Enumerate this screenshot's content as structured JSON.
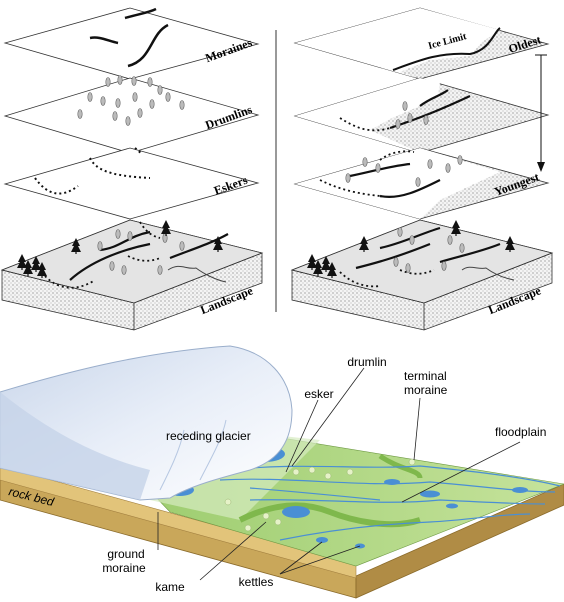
{
  "top_left": {
    "layers": [
      "Moraines",
      "Drumlins",
      "Eskers"
    ],
    "base": "Landscape"
  },
  "top_right": {
    "ice_limit": "Ice Limit",
    "oldest": "Oldest",
    "youngest": "Youngest",
    "base": "Landscape"
  },
  "bottom": {
    "labels": {
      "drumlin": "drumlin",
      "esker": "esker",
      "terminal_moraine_1": "terminal",
      "terminal_moraine_2": "moraine",
      "floodplain": "floodplain",
      "receding_glacier": "receding glacier",
      "rock_bed": "rock bed",
      "ground_moraine_1": "ground",
      "ground_moraine_2": "moraine",
      "kame": "kame",
      "kettles": "kettles"
    }
  },
  "colors": {
    "ice": "#dfe8f4",
    "land_green": "#b8dc8a",
    "water": "#4a8fd4",
    "rock_bed": "#d8b66a",
    "soil_side": "#b89a50"
  }
}
